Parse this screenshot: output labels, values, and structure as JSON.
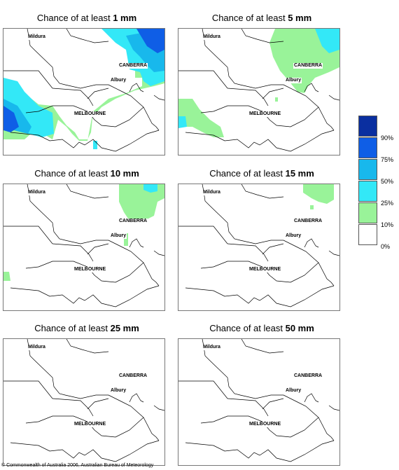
{
  "panels": [
    {
      "prefix": "Chance of at least ",
      "amount": "1 mm"
    },
    {
      "prefix": "Chance of at least ",
      "amount": "5 mm"
    },
    {
      "prefix": "Chance of at least ",
      "amount": "10 mm"
    },
    {
      "prefix": "Chance of at least ",
      "amount": "15 mm"
    },
    {
      "prefix": "Chance of at least ",
      "amount": "25 mm"
    },
    {
      "prefix": "Chance of at least ",
      "amount": "50 mm"
    }
  ],
  "places": {
    "mildura": "Mildura",
    "canberra": "CANBERRA",
    "albury": "Albury",
    "melbourne": "MELBOURNE"
  },
  "legend": {
    "labels": [
      "90%",
      "75%",
      "50%",
      "25%",
      "10%",
      "0%"
    ],
    "colors": [
      "#0a2fa0",
      "#0f5ee6",
      "#18b8ec",
      "#33e8f7",
      "#99f399",
      "#ffffff"
    ]
  },
  "colors": {
    "land": "#ffffff",
    "border": "#000000",
    "green": "#99f399",
    "light_cyan": "#33e8f7",
    "cyan": "#18b8ec",
    "blue": "#0f5ee6",
    "dark_blue": "#0a2fa0"
  },
  "copyright": "© Commonwealth of Australia 2006, Australian Bureau of Meteorology"
}
